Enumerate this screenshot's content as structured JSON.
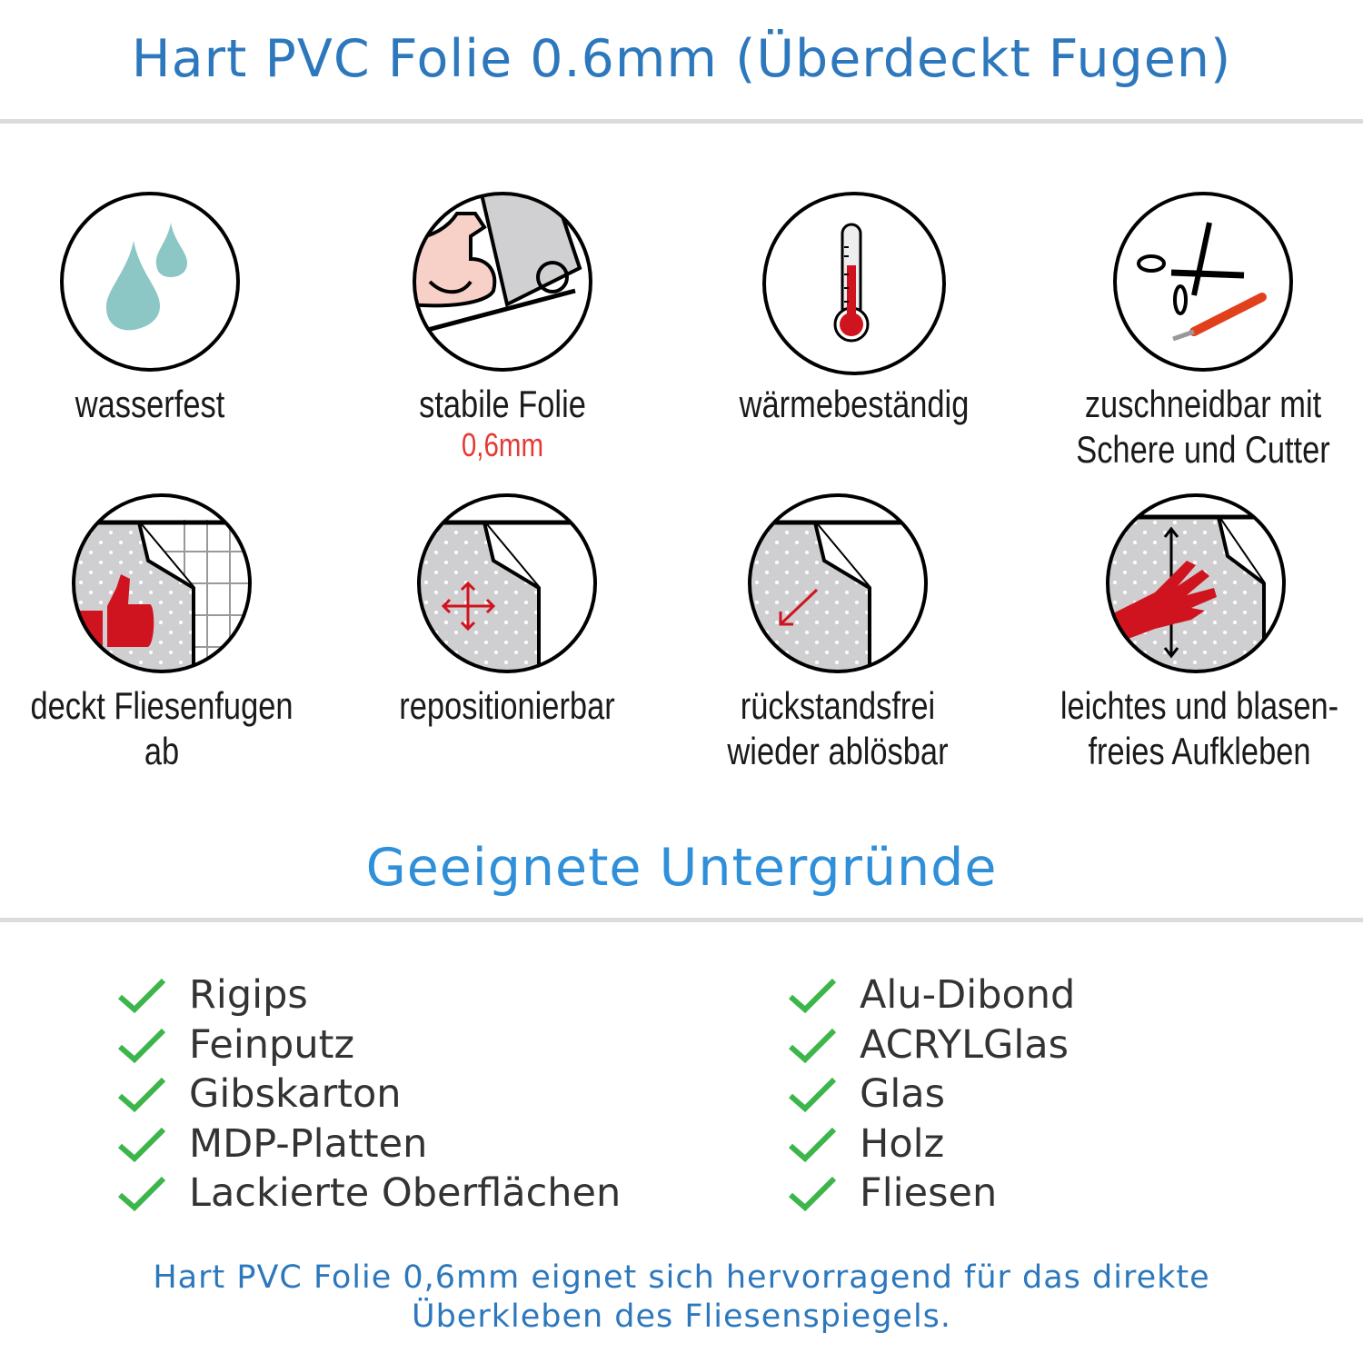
{
  "header": {
    "title": "Hart PVC Folie 0.6mm (Überdeckt Fugen)"
  },
  "features": [
    {
      "icon": "water-drops-icon",
      "label": "wasserfest"
    },
    {
      "icon": "strong-arm-foil-roll-icon",
      "label": "stabile Folie",
      "sublabel": "0,6mm"
    },
    {
      "icon": "thermometer-icon",
      "label": "wärmebeständig"
    },
    {
      "icon": "scissors-cutter-icon",
      "label": "zuschneidbar mit",
      "label2": "Schere und Cutter"
    },
    {
      "icon": "thumbs-up-tiles-icon",
      "label": "deckt Fliesenfugen ab"
    },
    {
      "icon": "move-arrows-icon",
      "label": "repositionierbar"
    },
    {
      "icon": "peel-arrow-icon",
      "label": "rückstandsfrei",
      "label2": "wieder ablösbar"
    },
    {
      "icon": "hand-smooth-icon",
      "label": "leichtes und blasen-",
      "label2": "freies Aufkleben"
    }
  ],
  "surfaces": {
    "title": "Geeignete Untergründe",
    "left": [
      "Rigips",
      "Feinputz",
      "Gibskarton",
      "MDP-Platten",
      "Lackierte Oberflächen"
    ],
    "right": [
      "Alu-Dibond",
      "ACRYLGlas",
      "Glas",
      "Holz",
      "Fliesen"
    ]
  },
  "footer": {
    "line1": "Hart PVC Folie 0,6mm eignet sich hervorragend für das direkte",
    "line2": "Überkleben des Fliesenspiegels."
  },
  "colors": {
    "title": "#2d78bd",
    "heading": "#2f8fd8",
    "check": "#3cb54a",
    "accent_red": "#e53935",
    "drop": "#8cc6c5"
  }
}
